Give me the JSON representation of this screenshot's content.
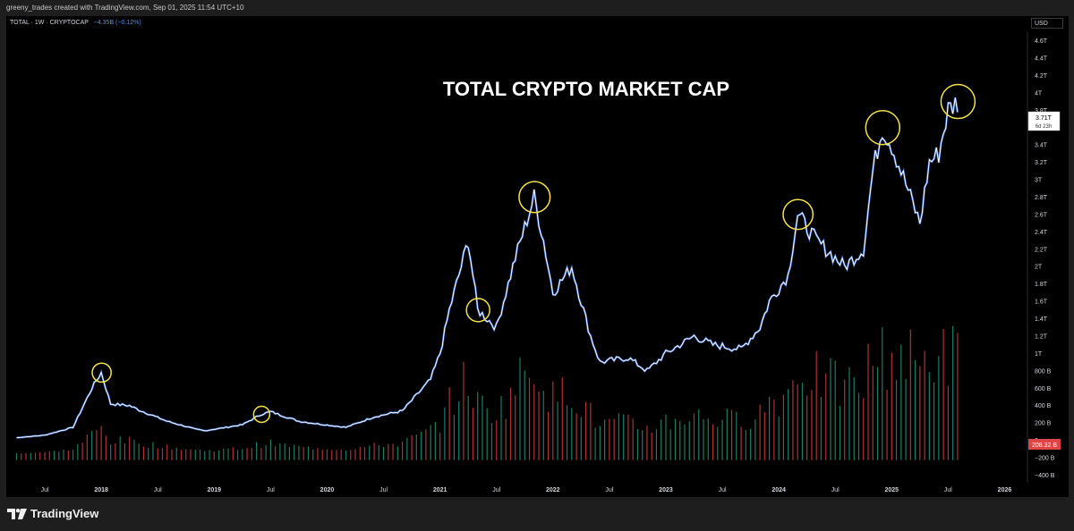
{
  "header": {
    "caption": "greeny_trades created with TradingView.com, Sep 01, 2025 11:54 UTC+10"
  },
  "legend": {
    "symbol": "TOTAL · 1W · CRYPTOCAP",
    "change": "−4.35B (−0.12%)"
  },
  "currency_button": "USD",
  "footer": {
    "brand": "TradingView"
  },
  "colors": {
    "background": "#000000",
    "line": "#ffffff",
    "line_accent": "#3d6fd6",
    "volume_up": "#1f8a6e",
    "volume_down": "#c0393b",
    "circle": "#f3e24d",
    "axis_text": "#d1d4dc",
    "volume_badge": "#e04545"
  },
  "chart_data": {
    "type": "line",
    "title": "TOTAL CRYPTO MARKET CAP",
    "x_range": [
      "2017-04",
      "2026-03"
    ],
    "x_tick_labels": [
      "Jul",
      "2018",
      "Jul",
      "2019",
      "Jul",
      "2020",
      "Jul",
      "2021",
      "Jul",
      "2022",
      "Jul",
      "2023",
      "Jul",
      "2024",
      "Jul",
      "2025",
      "Jul",
      "2026"
    ],
    "y_tick_labels": [
      "4.6T",
      "4.4T",
      "4.2T",
      "4T",
      "3.8T",
      "3.6T",
      "3.4T",
      "3.2T",
      "3T",
      "2.8T",
      "2.6T",
      "2.4T",
      "2.2T",
      "2T",
      "1.8T",
      "1.6T",
      "1.4T",
      "1.2T",
      "1T",
      "800 B",
      "600 B",
      "400 B",
      "200 B",
      "0",
      "−200 B",
      "−400 B"
    ],
    "y_unit": "USD",
    "price_label": {
      "value": "3.71T",
      "countdown": "6d 23h"
    },
    "volume_label": "208.32 B",
    "series": [
      {
        "values_x": [
          "2017-04",
          "2017-07",
          "2017-10",
          "2017-12",
          "2018-01",
          "2018-02",
          "2018-04",
          "2018-05",
          "2018-08",
          "2018-11",
          "2018-12",
          "2019-04",
          "2019-06",
          "2019-07",
          "2019-10",
          "2019-12",
          "2020-03",
          "2020-06",
          "2020-09",
          "2020-12",
          "2021-01",
          "2021-02",
          "2021-04",
          "2021-05",
          "2021-06",
          "2021-07",
          "2021-09",
          "2021-11",
          "2021-12",
          "2022-01",
          "2022-03",
          "2022-05",
          "2022-06",
          "2022-09",
          "2022-11",
          "2023-01",
          "2023-04",
          "2023-06",
          "2023-09",
          "2023-11",
          "2023-12",
          "2024-02",
          "2024-03",
          "2024-05",
          "2024-06",
          "2024-08",
          "2024-10",
          "2024-11",
          "2024-12",
          "2025-01",
          "2025-03",
          "2025-04",
          "2025-05",
          "2025-06",
          "2025-07",
          "2025-08"
        ],
        "values_y": [
          30,
          60,
          150,
          600,
          780,
          420,
          400,
          350,
          220,
          130,
          110,
          180,
          300,
          330,
          220,
          190,
          150,
          270,
          340,
          700,
          1000,
          1500,
          2300,
          1500,
          1400,
          1300,
          2100,
          2800,
          2300,
          1700,
          2000,
          1200,
          900,
          950,
          800,
          1000,
          1200,
          1100,
          1050,
          1300,
          1600,
          1900,
          2600,
          2300,
          2200,
          2000,
          2200,
          3100,
          3600,
          3400,
          2800,
          2500,
          3200,
          3300,
          3800,
          3900
        ]
      }
    ],
    "volume_approx_range": [
      0,
      900
    ],
    "highlighted_peaks": [
      "2018-01",
      "2019-06",
      "2021-05",
      "2021-11",
      "2024-03",
      "2024-12",
      "2025-08"
    ],
    "grid": false
  }
}
